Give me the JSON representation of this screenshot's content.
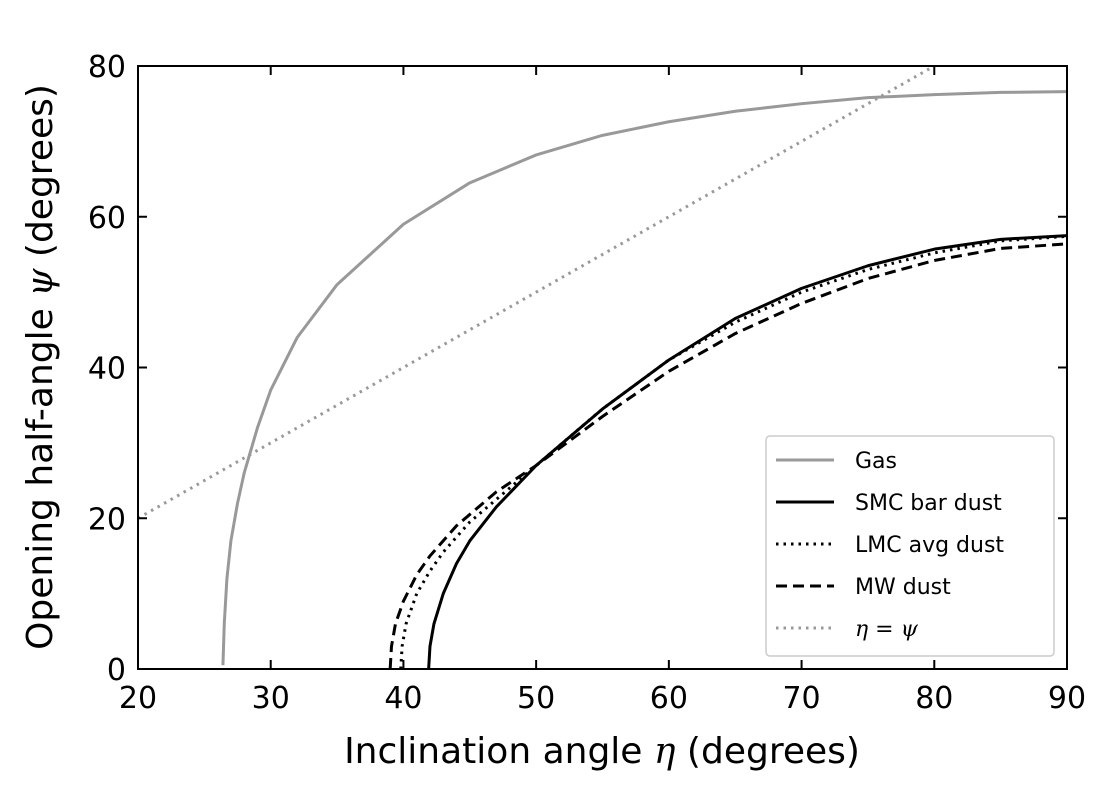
{
  "chart_data": {
    "type": "line",
    "xlabel_prefix": "Inclination angle ",
    "xlabel_symbol": "η",
    "xlabel_suffix": " (degrees)",
    "ylabel_prefix": "Opening half-angle ",
    "ylabel_symbol": "ψ",
    "ylabel_suffix": " (degrees)",
    "xlim": [
      20,
      90
    ],
    "ylim": [
      0,
      80
    ],
    "xticks": [
      20,
      30,
      40,
      50,
      60,
      70,
      80,
      90
    ],
    "yticks": [
      0,
      20,
      40,
      60,
      80
    ],
    "legend_position": "lower-right",
    "series": [
      {
        "name": "Gas",
        "color": "#999999",
        "style": "solid",
        "x": [
          26.4,
          26.5,
          26.7,
          27.0,
          27.5,
          28.0,
          29.0,
          30.0,
          32.0,
          35.0,
          40.0,
          45.0,
          50.0,
          55.0,
          60.0,
          65.0,
          70.0,
          75.0,
          80.0,
          85.0,
          90.0
        ],
        "y": [
          0.5,
          6,
          12,
          17,
          22,
          26,
          32,
          37,
          44,
          51,
          59,
          64.5,
          68.2,
          70.8,
          72.6,
          74.0,
          75.0,
          75.8,
          76.2,
          76.5,
          76.6
        ]
      },
      {
        "name": "SMC bar dust",
        "color": "#000000",
        "style": "solid",
        "x": [
          41.9,
          42.0,
          42.3,
          43.0,
          44.0,
          45.0,
          47.0,
          50.0,
          55.0,
          60.0,
          65.0,
          70.0,
          75.0,
          80.0,
          85.0,
          90.0
        ],
        "y": [
          0,
          3,
          6,
          10,
          14,
          17,
          21.5,
          27,
          34.5,
          41,
          46.5,
          50.5,
          53.5,
          55.7,
          57,
          57.5
        ]
      },
      {
        "name": "LMC avg dust",
        "color": "#000000",
        "style": "dotted",
        "x": [
          39.8,
          39.9,
          40.2,
          41.0,
          42.0,
          43.0,
          45.0,
          48.0,
          50.0,
          55.0,
          60.0,
          65.0,
          70.0,
          75.0,
          80.0,
          85.0,
          90.0
        ],
        "y": [
          0,
          3,
          6,
          10,
          13,
          15.5,
          19.5,
          24,
          27,
          34.5,
          41,
          46,
          50,
          53,
          55.2,
          56.8,
          57.4
        ]
      },
      {
        "name": "MW dust",
        "color": "#000000",
        "style": "dashed",
        "x": [
          39.0,
          39.1,
          39.4,
          40.0,
          41.0,
          42.0,
          44.0,
          47.0,
          50.0,
          55.0,
          60.0,
          65.0,
          70.0,
          75.0,
          80.0,
          85.0,
          90.0
        ],
        "y": [
          0,
          3,
          6,
          9,
          12.5,
          15,
          19,
          23.5,
          27,
          33.5,
          39.5,
          44.5,
          48.5,
          51.8,
          54.2,
          55.8,
          56.4
        ]
      },
      {
        "name": "η = ψ",
        "color": "#999999",
        "style": "dotted",
        "x": [
          20,
          80
        ],
        "y": [
          20,
          80
        ]
      }
    ]
  }
}
